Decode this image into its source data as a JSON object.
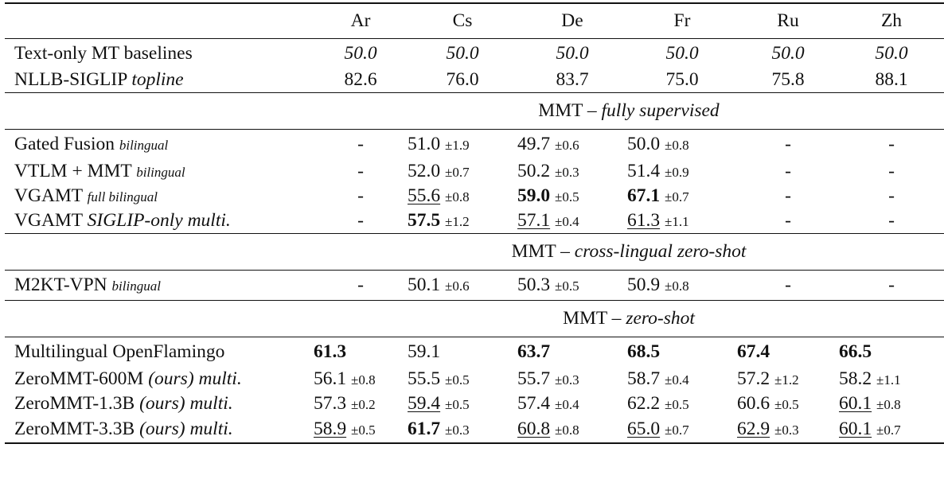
{
  "columns": [
    "Ar",
    "Cs",
    "De",
    "Fr",
    "Ru",
    "Zh"
  ],
  "baselines": [
    {
      "name": "Text-only MT baselines",
      "name_italic": "",
      "italic_values": true,
      "cells": [
        "50.0",
        "50.0",
        "50.0",
        "50.0",
        "50.0",
        "50.0"
      ]
    },
    {
      "name": "NLLB-SIGLIP",
      "name_italic": "topline",
      "italic_values": false,
      "cells": [
        "82.6",
        "76.0",
        "83.7",
        "75.0",
        "75.8",
        "88.1"
      ]
    }
  ],
  "sections": {
    "fully_supervised": {
      "prefix": "MMT – ",
      "label": "fully supervised"
    },
    "cross_lingual": {
      "prefix": "MMT – ",
      "label": "cross-lingual zero-shot"
    },
    "zero_shot": {
      "prefix": "MMT – ",
      "label": "zero-shot"
    }
  },
  "fully_supervised_rows": [
    {
      "name": "Gated Fusion",
      "tag": "bilingual",
      "cells": [
        {
          "v": "-"
        },
        {
          "v": "51.0",
          "pm": "±1.9"
        },
        {
          "v": "49.7",
          "pm": "±0.6"
        },
        {
          "v": "50.0",
          "pm": "±0.8"
        },
        {
          "v": "-"
        },
        {
          "v": "-"
        }
      ]
    },
    {
      "name": "VTLM + MMT",
      "tag": "bilingual",
      "cells": [
        {
          "v": "-"
        },
        {
          "v": "52.0",
          "pm": "±0.7"
        },
        {
          "v": "50.2",
          "pm": "±0.3"
        },
        {
          "v": "51.4",
          "pm": "±0.9"
        },
        {
          "v": "-"
        },
        {
          "v": "-"
        }
      ]
    },
    {
      "name": "VGAMT",
      "tag": "full bilingual",
      "cells": [
        {
          "v": "-"
        },
        {
          "v": "55.6",
          "pm": "±0.8",
          "u": true
        },
        {
          "v": "59.0",
          "pm": "±0.5",
          "b": true
        },
        {
          "v": "67.1",
          "pm": "±0.7",
          "b": true
        },
        {
          "v": "-"
        },
        {
          "v": "-"
        }
      ]
    },
    {
      "name": "VGAMT",
      "name_it": "SIGLIP",
      "name_rest": "-only multi.",
      "cells": [
        {
          "v": "-"
        },
        {
          "v": "57.5",
          "pm": "±1.2",
          "b": true
        },
        {
          "v": "57.1",
          "pm": "±0.4",
          "u": true
        },
        {
          "v": "61.3",
          "pm": "±1.1",
          "u": true
        },
        {
          "v": "-"
        },
        {
          "v": "-"
        }
      ]
    }
  ],
  "cross_lingual_rows": [
    {
      "name": "M2KT-VPN",
      "tag": "bilingual",
      "cells": [
        {
          "v": "-"
        },
        {
          "v": "50.1",
          "pm": "±0.6"
        },
        {
          "v": "50.3",
          "pm": "±0.5"
        },
        {
          "v": "50.9",
          "pm": "±0.8"
        },
        {
          "v": "-"
        },
        {
          "v": "-"
        }
      ]
    }
  ],
  "zero_shot_rows": [
    {
      "name": "Multilingual OpenFlamingo",
      "cells": [
        {
          "v": "61.3",
          "b": true
        },
        {
          "v": "59.1"
        },
        {
          "v": "63.7",
          "b": true
        },
        {
          "v": "68.5",
          "b": true
        },
        {
          "v": "67.4",
          "b": true
        },
        {
          "v": "66.5",
          "b": true
        }
      ]
    },
    {
      "name": "ZeroMMT-600M",
      "ours": "(ours)",
      "suffix": "multi.",
      "cells": [
        {
          "v": "56.1",
          "pm": "±0.8"
        },
        {
          "v": "55.5",
          "pm": "±0.5"
        },
        {
          "v": "55.7",
          "pm": "±0.3"
        },
        {
          "v": "58.7",
          "pm": "±0.4"
        },
        {
          "v": "57.2",
          "pm": "±1.2"
        },
        {
          "v": "58.2",
          "pm": "±1.1"
        }
      ]
    },
    {
      "name": "ZeroMMT-1.3B",
      "ours": "(ours)",
      "suffix": "multi.",
      "cells": [
        {
          "v": "57.3",
          "pm": "±0.2"
        },
        {
          "v": "59.4",
          "pm": "±0.5",
          "u": true
        },
        {
          "v": "57.4",
          "pm": "±0.4"
        },
        {
          "v": "62.2",
          "pm": "±0.5"
        },
        {
          "v": "60.6",
          "pm": "±0.5"
        },
        {
          "v": "60.1",
          "pm": "±0.8",
          "u": true
        }
      ]
    },
    {
      "name": "ZeroMMT-3.3B",
      "ours": "(ours)",
      "suffix": "multi.",
      "cells": [
        {
          "v": "58.9",
          "pm": "±0.5",
          "u": true
        },
        {
          "v": "61.7",
          "pm": "±0.3",
          "b": true
        },
        {
          "v": "60.8",
          "pm": "±0.8",
          "u": true
        },
        {
          "v": "65.0",
          "pm": "±0.7",
          "u": true
        },
        {
          "v": "62.9",
          "pm": "±0.3",
          "u": true
        },
        {
          "v": "60.1",
          "pm": "±0.7",
          "u": true
        }
      ]
    }
  ]
}
